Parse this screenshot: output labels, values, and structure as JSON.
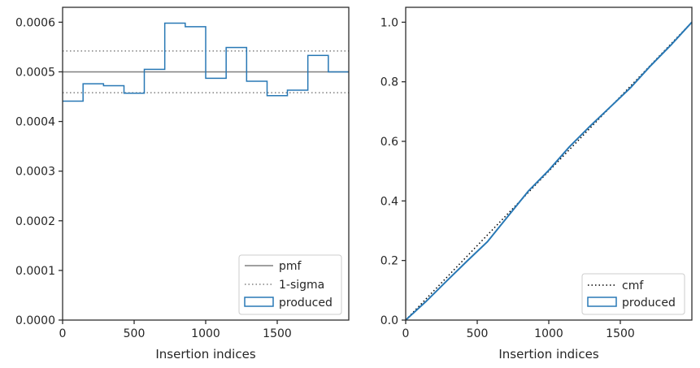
{
  "colors": {
    "produced": "#2878b5",
    "pmf": "#808080",
    "sigma": "#808080",
    "cmf": "#000000",
    "axes": "#262626"
  },
  "chart_data": [
    {
      "type": "step-histogram",
      "title": "",
      "xlabel": "Insertion indices",
      "ylabel": "",
      "xlim": [
        0,
        2000
      ],
      "ylim": [
        0,
        0.00063
      ],
      "xticks": [
        0,
        500,
        1000,
        1500
      ],
      "xtick_labels": [
        "0",
        "500",
        "1000",
        "1500"
      ],
      "yticks": [
        0,
        0.0001,
        0.0002,
        0.0003,
        0.0004,
        0.0005,
        0.0006
      ],
      "ytick_labels": [
        "0.0000",
        "0.0001",
        "0.0002",
        "0.0003",
        "0.0004",
        "0.0005",
        "0.0006"
      ],
      "bin_edges": [
        0,
        143,
        286,
        429,
        571,
        714,
        857,
        1000,
        1143,
        1286,
        1429,
        1571,
        1714,
        1857,
        2000
      ],
      "values": [
        0.000441,
        0.000476,
        0.000472,
        0.000457,
        0.000505,
        0.000598,
        0.000591,
        0.000487,
        0.000549,
        0.000481,
        0.000452,
        0.000463,
        0.000533,
        0.0005
      ],
      "pmf": 0.0005,
      "sigma_band": [
        0.000458,
        0.000542
      ],
      "legend_position": "lower right",
      "legend": [
        {
          "label": "pmf",
          "style": "solid"
        },
        {
          "label": "1-sigma",
          "style": "dotted"
        },
        {
          "label": "produced",
          "style": "patch"
        }
      ]
    },
    {
      "type": "line",
      "title": "",
      "xlabel": "Insertion indices",
      "ylabel": "",
      "xlim": [
        0,
        2000
      ],
      "ylim": [
        0,
        1.05
      ],
      "xticks": [
        0,
        500,
        1000,
        1500
      ],
      "xtick_labels": [
        "0",
        "500",
        "1000",
        "1500"
      ],
      "yticks": [
        0,
        0.2,
        0.4,
        0.6,
        0.8,
        1.0
      ],
      "ytick_labels": [
        "0.0",
        "0.2",
        "0.4",
        "0.6",
        "0.8",
        "1.0"
      ],
      "series": [
        {
          "name": "cmf",
          "style": "dotted",
          "x": [
            0,
            2000
          ],
          "y": [
            0,
            1.0
          ]
        },
        {
          "name": "produced",
          "style": "solid",
          "x": [
            0,
            143,
            286,
            429,
            571,
            714,
            857,
            1000,
            1143,
            1286,
            1429,
            1571,
            1714,
            1857,
            2000
          ],
          "y": [
            0,
            0.063,
            0.131,
            0.198,
            0.263,
            0.348,
            0.433,
            0.503,
            0.581,
            0.65,
            0.715,
            0.78,
            0.855,
            0.925,
            1.0
          ]
        }
      ],
      "legend_position": "lower right",
      "legend": [
        {
          "label": "cmf",
          "style": "dotted"
        },
        {
          "label": "produced",
          "style": "patch"
        }
      ]
    }
  ]
}
